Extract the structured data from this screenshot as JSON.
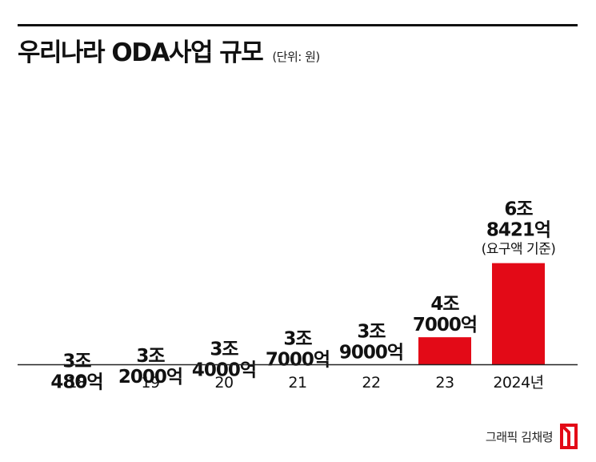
{
  "header": {
    "title": "우리나라 ODA사업 규모",
    "unit": "(단위: 원)"
  },
  "chart_data": {
    "type": "bar",
    "title": "우리나라 ODA사업 규모",
    "unit": "(단위: 원)",
    "categories": [
      "18",
      "19",
      "20",
      "21",
      "22",
      "23",
      "2024년"
    ],
    "values": [
      3.048,
      3.2,
      3.4,
      3.7,
      3.9,
      4.7,
      6.8421
    ],
    "value_unit": "조 원",
    "data_labels": [
      [
        "3조",
        "480억"
      ],
      [
        "3조",
        "2000억"
      ],
      [
        "3조",
        "4000억"
      ],
      [
        "3조",
        "7000억"
      ],
      [
        "3조",
        "9000억"
      ],
      [
        "4조",
        "7000억"
      ],
      [
        "6조",
        "8421억",
        "(요구액 기준)"
      ]
    ],
    "bar_color": "#e30a17",
    "baseline_color": "#222222",
    "grid": false,
    "legend": "none"
  },
  "footer": {
    "credit": "그래픽 김채령",
    "logo_icon": "red-notch-logo-icon",
    "logo_color": "#e30a17"
  }
}
